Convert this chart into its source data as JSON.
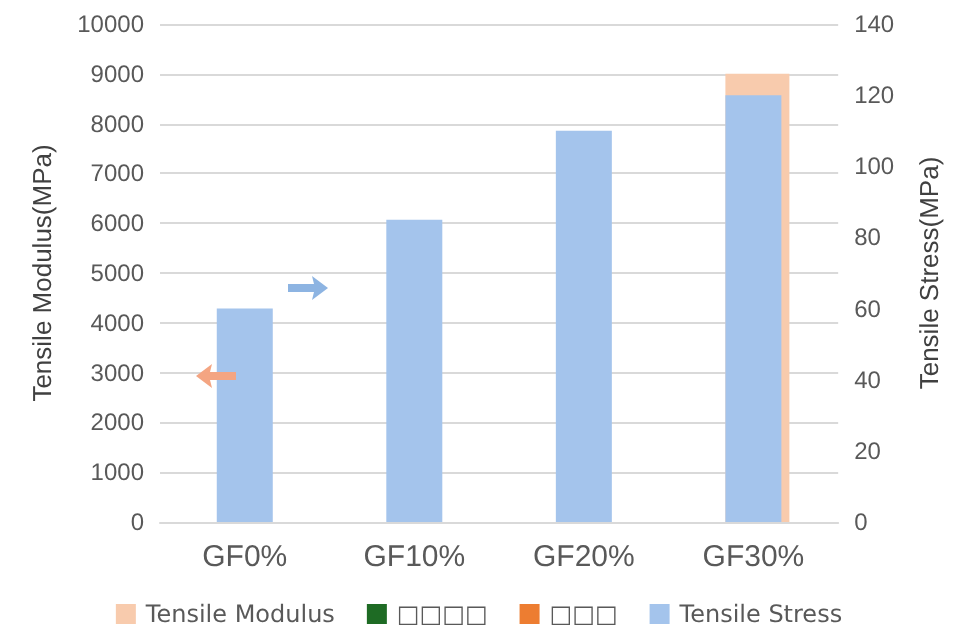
{
  "chart_data": {
    "type": "bar",
    "ylabel": "Tensile Modulus(MPa)",
    "y2label": "Tensile Stress(MPa)",
    "categories": [
      "GF0%",
      "GF10%",
      "GF20%",
      "GF30%"
    ],
    "series": [
      {
        "name": "Tensile Modulus",
        "color": "#f8cbad",
        "values": [
          null,
          null,
          null,
          9000
        ]
      },
      {
        "name": "□□□□",
        "color": "#1e6b24",
        "values": [
          null,
          null,
          null,
          null
        ]
      },
      {
        "name": "□□□",
        "color": "#ed7d31",
        "values": [
          null,
          null,
          null,
          null
        ]
      },
      {
        "name": "Tensile Stress",
        "color": "#a4c4ec",
        "axis": "y2",
        "values": [
          60,
          85,
          110,
          120
        ]
      }
    ],
    "ylim": [
      0,
      10000
    ],
    "yticks": [
      0,
      1000,
      2000,
      3000,
      4000,
      5000,
      6000,
      7000,
      8000,
      9000,
      10000
    ],
    "y2lim": [
      0,
      140
    ],
    "y2ticks": [
      0,
      20,
      40,
      60,
      80,
      100,
      120,
      140
    ],
    "grid": "y",
    "legend": "bottom"
  }
}
